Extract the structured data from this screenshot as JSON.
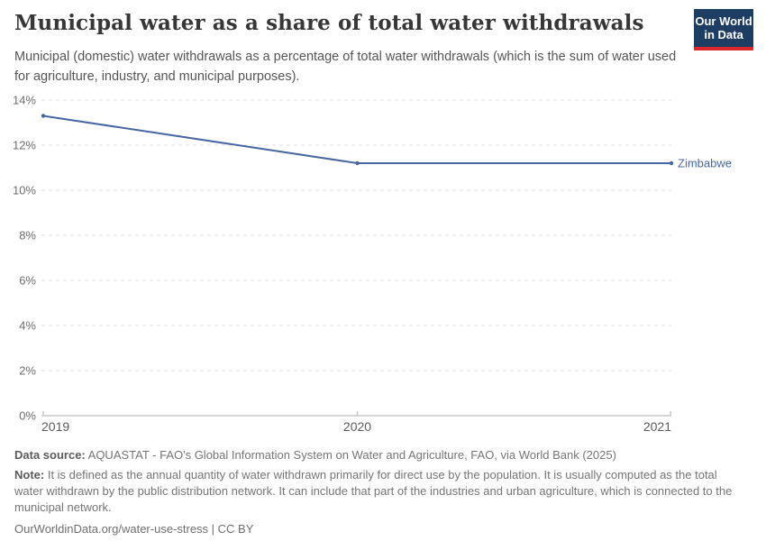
{
  "header": {
    "title": "Municipal water as a share of total water withdrawals",
    "subtitle": "Municipal (domestic) water withdrawals as a percentage of total water withdrawals (which is the sum of water used for agriculture, industry, and municipal purposes).",
    "logo": {
      "line1": "Our World",
      "line2": "in Data",
      "bg_color": "#1d3d63",
      "accent_color": "#dc2a2a"
    }
  },
  "chart_data": {
    "type": "line",
    "title": "Municipal water as a share of total water withdrawals",
    "series": [
      {
        "name": "Zimbabwe",
        "x": [
          2019,
          2020,
          2021
        ],
        "values": [
          13.3,
          11.2,
          11.2
        ],
        "color": "#4767a2"
      }
    ],
    "x_ticks": [
      "2019",
      "2020",
      "2021"
    ],
    "y_ticks": [
      "0%",
      "2%",
      "4%",
      "6%",
      "8%",
      "10%",
      "12%",
      "14%"
    ],
    "xlim": [
      2019,
      2021
    ],
    "ylim": [
      0,
      14
    ],
    "xlabel": "",
    "ylabel": "",
    "grid": "horizontal-dashed",
    "legend_position": "end-of-line-label",
    "grid_color": "#dcdcdc",
    "axis_color": "#c8c8c8",
    "tick_label_color": "#6e6e6e",
    "x_label_color": "#5b5b5b"
  },
  "footer": {
    "data_source_label": "Data source:",
    "data_source_text": " AQUASTAT - FAO's Global Information System on Water and Agriculture, FAO, via World Bank (2025)",
    "note_label": "Note:",
    "note_text": " It is defined as the annual quantity of water withdrawn primarily for direct use by the population. It is usually computed as the total water withdrawn by the public distribution network. It can include that part of the industries and urban agriculture, which is connected to the municipal network.",
    "credit": "OurWorldinData.org/water-use-stress | CC BY"
  }
}
